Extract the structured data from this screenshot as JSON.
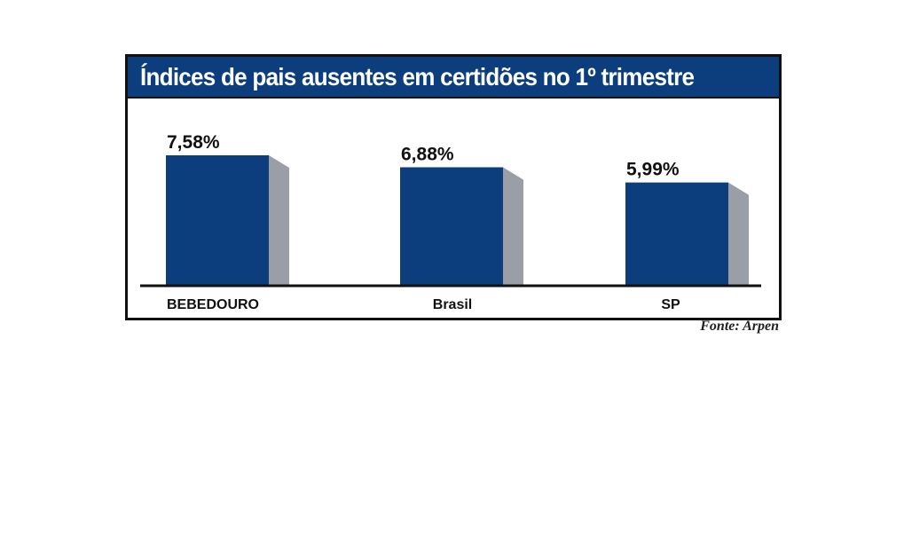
{
  "chart_data": {
    "type": "bar",
    "title": "Índices de pais ausentes em certidões no 1º trimestre",
    "categories": [
      "BEBEDOURO",
      "Brasil",
      "SP"
    ],
    "values": [
      7.58,
      6.88,
      5.99
    ],
    "value_labels": [
      "7,58%",
      "6,88%",
      "5,99%"
    ],
    "unit": "%",
    "xlabel": "",
    "ylabel": "",
    "ylim": [
      0,
      7.58
    ],
    "grid": false,
    "legend": "none",
    "source": "Fonte: Arpen"
  },
  "colors": {
    "title_bar": "#0c3d7c",
    "bar_front": "#0c3d7c",
    "bar_side": "#9a9ea6",
    "bar_top": "#b8bcc3",
    "baseline": "#111111"
  }
}
